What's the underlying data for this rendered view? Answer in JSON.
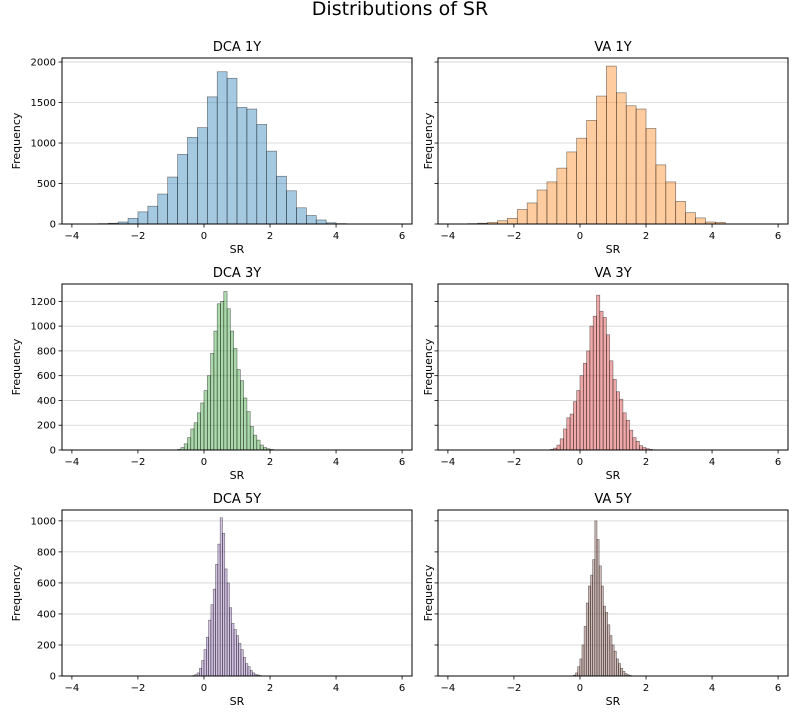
{
  "figure": {
    "title": "Distributions of SR"
  },
  "chart_data": [
    {
      "type": "bar",
      "title": "DCA 1Y",
      "xlabel": "SR",
      "ylabel": "Frequency",
      "xlim": [
        -4.3,
        6.3
      ],
      "ylim": [
        0,
        2050
      ],
      "xticks": [
        -4,
        -2,
        0,
        2,
        4,
        6
      ],
      "yticks": [
        0,
        500,
        1000,
        1500,
        2000
      ],
      "show_yticklabels": true,
      "grid": "horizontal",
      "color": "#1f77b4",
      "alpha": 0.4,
      "bin_start": -3.2,
      "bin_width": 0.3,
      "values": [
        5,
        10,
        25,
        70,
        150,
        220,
        370,
        580,
        860,
        1070,
        1190,
        1570,
        1880,
        1800,
        1440,
        1420,
        1230,
        900,
        590,
        410,
        200,
        105,
        50,
        15,
        5
      ]
    },
    {
      "type": "bar",
      "title": "VA 1Y",
      "xlabel": "SR",
      "ylabel": "Frequency",
      "xlim": [
        -4.3,
        6.3
      ],
      "ylim": [
        0,
        2050
      ],
      "xticks": [
        -4,
        -2,
        0,
        2,
        4,
        6
      ],
      "yticks": [
        0,
        500,
        1000,
        1500,
        2000
      ],
      "show_yticklabels": false,
      "grid": "horizontal",
      "color": "#ff7f0e",
      "alpha": 0.4,
      "bin_start": -3.4,
      "bin_width": 0.3,
      "values": [
        5,
        10,
        20,
        40,
        70,
        180,
        260,
        420,
        520,
        690,
        890,
        1060,
        1280,
        1580,
        1950,
        1620,
        1460,
        1420,
        1180,
        730,
        520,
        280,
        140,
        75,
        25,
        20
      ]
    },
    {
      "type": "bar",
      "title": "DCA 3Y",
      "xlabel": "SR",
      "ylabel": "Frequency",
      "xlim": [
        -4.3,
        6.3
      ],
      "ylim": [
        0,
        1340
      ],
      "xticks": [
        -4,
        -2,
        0,
        2,
        4,
        6
      ],
      "yticks": [
        0,
        200,
        400,
        600,
        800,
        1000,
        1200
      ],
      "show_yticklabels": true,
      "grid": "horizontal",
      "color": "#2ca02c",
      "alpha": 0.4,
      "bin_start": -0.8,
      "bin_width": 0.1,
      "values": [
        5,
        20,
        50,
        100,
        170,
        220,
        300,
        380,
        480,
        600,
        780,
        960,
        1180,
        1200,
        1280,
        1140,
        960,
        820,
        650,
        560,
        420,
        310,
        190,
        120,
        80,
        40,
        20,
        10,
        5
      ]
    },
    {
      "type": "bar",
      "title": "VA 3Y",
      "xlabel": "SR",
      "ylabel": "Frequency",
      "xlim": [
        -4.3,
        6.3
      ],
      "ylim": [
        0,
        1340
      ],
      "xticks": [
        -4,
        -2,
        0,
        2,
        4,
        6
      ],
      "yticks": [
        0,
        200,
        400,
        600,
        800,
        1000,
        1200
      ],
      "show_yticklabels": false,
      "grid": "horizontal",
      "color": "#d62728",
      "alpha": 0.4,
      "bin_start": -0.9,
      "bin_width": 0.1,
      "values": [
        5,
        15,
        40,
        90,
        170,
        260,
        290,
        390,
        480,
        600,
        700,
        800,
        1000,
        1080,
        1250,
        1120,
        1070,
        930,
        720,
        570,
        470,
        410,
        300,
        240,
        160,
        100,
        70,
        35,
        20,
        10,
        5
      ]
    },
    {
      "type": "bar",
      "title": "DCA 5Y",
      "xlabel": "SR",
      "ylabel": "Frequency",
      "xlim": [
        -4.3,
        6.3
      ],
      "ylim": [
        0,
        1070
      ],
      "xticks": [
        -4,
        -2,
        0,
        2,
        4,
        6
      ],
      "yticks": [
        0,
        200,
        400,
        600,
        800,
        1000
      ],
      "show_yticklabels": true,
      "grid": "horizontal",
      "color": "#9467bd",
      "alpha": 0.4,
      "bin_start": -0.35,
      "bin_width": 0.07,
      "values": [
        3,
        8,
        20,
        50,
        100,
        170,
        250,
        360,
        460,
        560,
        720,
        850,
        1020,
        920,
        690,
        600,
        440,
        340,
        300,
        260,
        210,
        170,
        120,
        80,
        60,
        35,
        20,
        10,
        6,
        3
      ]
    },
    {
      "type": "bar",
      "title": "VA 5Y",
      "xlabel": "SR",
      "ylabel": "Frequency",
      "xlim": [
        -4.3,
        6.3
      ],
      "ylim": [
        0,
        1070
      ],
      "xticks": [
        -4,
        -2,
        0,
        2,
        4,
        6
      ],
      "yticks": [
        0,
        200,
        400,
        600,
        800,
        1000
      ],
      "show_yticklabels": false,
      "grid": "horizontal",
      "color": "#8c564b",
      "alpha": 0.4,
      "bin_start": -0.2,
      "bin_width": 0.065,
      "values": [
        5,
        20,
        60,
        110,
        200,
        320,
        470,
        580,
        650,
        750,
        1000,
        880,
        710,
        580,
        450,
        410,
        330,
        260,
        200,
        160,
        110,
        80,
        50,
        30,
        15,
        8,
        4
      ]
    }
  ]
}
